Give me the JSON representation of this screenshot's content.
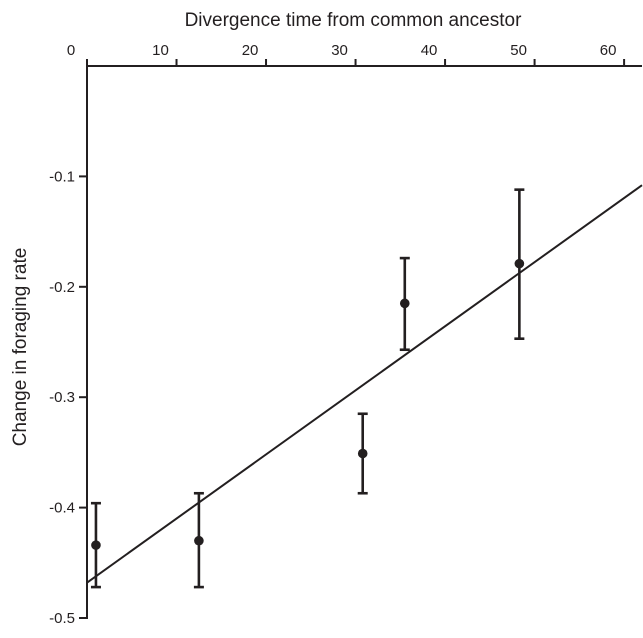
{
  "chart_data": {
    "type": "scatter",
    "title": "",
    "xlabel": "Divergence time from common ancestor",
    "ylabel": "Change in foraging rate",
    "xlim": [
      0,
      62
    ],
    "ylim": [
      -0.5,
      0.0
    ],
    "x_axis_position": "top",
    "x_ticks": [
      0,
      10,
      20,
      30,
      40,
      50,
      60
    ],
    "x_tick_labels": [
      "0",
      "10",
      "20",
      "30",
      "40",
      "50",
      "60"
    ],
    "y_ticks": [
      -0.1,
      -0.2,
      -0.3,
      -0.4,
      -0.5
    ],
    "y_tick_labels": [
      "-0.1",
      "-0.2",
      "-0.3",
      "-0.4",
      "-0.5"
    ],
    "grid": false,
    "legend": "none",
    "colors": {
      "ink": "#231f20"
    },
    "points": [
      {
        "x": 1.0,
        "y": -0.434,
        "err_low": -0.472,
        "err_high": -0.396
      },
      {
        "x": 12.5,
        "y": -0.43,
        "err_low": -0.472,
        "err_high": -0.387
      },
      {
        "x": 30.8,
        "y": -0.351,
        "err_low": -0.387,
        "err_high": -0.315
      },
      {
        "x": 35.5,
        "y": -0.215,
        "err_low": -0.257,
        "err_high": -0.174
      },
      {
        "x": 48.3,
        "y": -0.179,
        "err_low": -0.247,
        "err_high": -0.112
      }
    ],
    "trendline": {
      "x": [
        0,
        62
      ],
      "y": [
        -0.468,
        -0.108
      ]
    }
  }
}
